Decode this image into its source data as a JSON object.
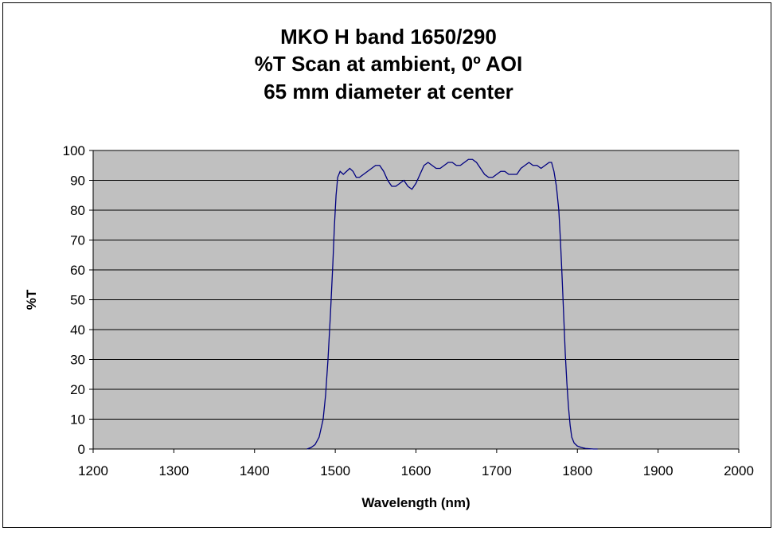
{
  "chart_data": {
    "type": "line",
    "title_lines": [
      "MKO H band 1650/290",
      "%T Scan at ambient, 0º AOI",
      "65 mm diameter at center"
    ],
    "xlabel": "Wavelength (nm)",
    "ylabel": "%T",
    "xlim": [
      1200,
      2000
    ],
    "ylim": [
      0,
      100
    ],
    "x_ticks": [
      1200,
      1300,
      1400,
      1500,
      1600,
      1700,
      1800,
      1900,
      2000
    ],
    "y_ticks": [
      0,
      10,
      20,
      30,
      40,
      50,
      60,
      70,
      80,
      90,
      100
    ],
    "grid": "horizontal",
    "plot_background": "#c0c0c0",
    "line_color": "#000080",
    "series": [
      {
        "x": [
          1465,
          1470,
          1475,
          1480,
          1485,
          1488,
          1491,
          1494,
          1497,
          1499,
          1501,
          1503,
          1506,
          1510,
          1514,
          1518,
          1522,
          1526,
          1530,
          1535,
          1540,
          1545,
          1550,
          1555,
          1560,
          1565,
          1570,
          1575,
          1580,
          1585,
          1590,
          1595,
          1600,
          1605,
          1610,
          1615,
          1620,
          1625,
          1630,
          1635,
          1640,
          1645,
          1650,
          1655,
          1660,
          1665,
          1670,
          1675,
          1680,
          1685,
          1690,
          1695,
          1700,
          1705,
          1710,
          1715,
          1720,
          1725,
          1730,
          1735,
          1740,
          1745,
          1750,
          1755,
          1760,
          1765,
          1768,
          1771,
          1774,
          1777,
          1779,
          1781,
          1783,
          1785,
          1787,
          1789,
          1791,
          1793,
          1796,
          1800,
          1805,
          1810,
          1815,
          1820,
          1825
        ],
        "y": [
          0,
          0.5,
          1.5,
          4,
          10,
          18,
          30,
          45,
          62,
          75,
          85,
          91,
          93,
          92,
          93,
          94,
          93,
          91,
          91,
          92,
          93,
          94,
          95,
          95,
          93,
          90,
          88,
          88,
          89,
          90,
          88,
          87,
          89,
          92,
          95,
          96,
          95,
          94,
          94,
          95,
          96,
          96,
          95,
          95,
          96,
          97,
          97,
          96,
          94,
          92,
          91,
          91,
          92,
          93,
          93,
          92,
          92,
          92,
          94,
          95,
          96,
          95,
          95,
          94,
          95,
          96,
          96,
          93,
          88,
          80,
          70,
          58,
          45,
          32,
          22,
          14,
          8,
          4,
          2,
          1,
          0.5,
          0.2,
          0.1,
          0,
          0
        ]
      }
    ]
  }
}
